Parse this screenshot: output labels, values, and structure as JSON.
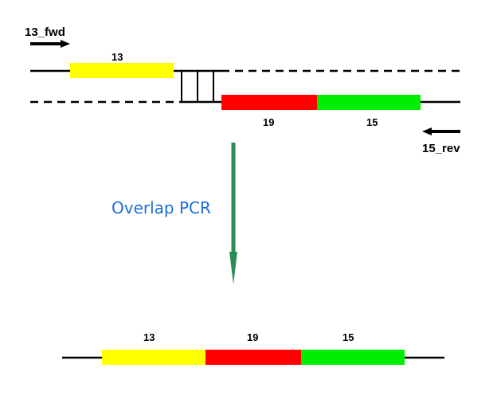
{
  "primers": {
    "forward": "13_fwd",
    "reverse": "15_rev"
  },
  "method_label": "Overlap PCR",
  "segments": {
    "a": "13",
    "b": "19",
    "c": "15"
  },
  "colors": {
    "segment_a": "#ffff00",
    "segment_b": "#ff0000",
    "segment_c": "#00ee00",
    "arrow": "#2e8b57",
    "method_text": "#1a6fd8",
    "line": "#000000"
  }
}
